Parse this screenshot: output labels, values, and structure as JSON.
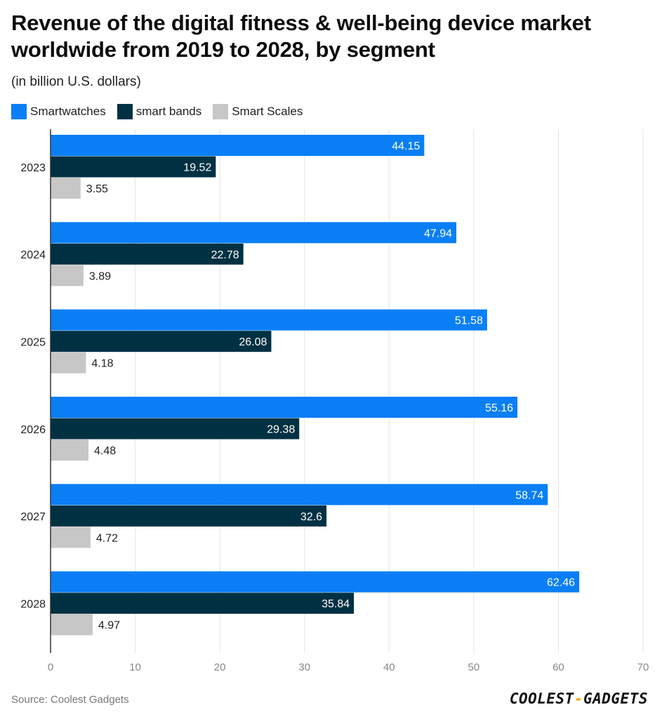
{
  "chart_data": {
    "type": "bar",
    "orientation": "horizontal",
    "title": "Revenue of the digital fitness & well-being device market worldwide from 2019 to 2028, by segment",
    "subtitle": "(in billion U.S. dollars)",
    "categories": [
      "2023",
      "2024",
      "2025",
      "2026",
      "2027",
      "2028"
    ],
    "series": [
      {
        "name": "Smartwatches",
        "color": "#0a7ff5",
        "values": [
          44.15,
          47.94,
          51.58,
          55.16,
          58.74,
          62.46
        ],
        "labels": [
          "44.15",
          "47.94",
          "51.58",
          "55.16",
          "58.74",
          "62.46"
        ]
      },
      {
        "name": "smart bands",
        "color": "#003143",
        "values": [
          19.52,
          22.78,
          26.08,
          29.38,
          32.6,
          35.84
        ],
        "labels": [
          "19.52",
          "22.78",
          "26.08",
          "29.38",
          "32.6",
          "35.84"
        ]
      },
      {
        "name": "Smart Scales",
        "color": "#c7c7c7",
        "values": [
          3.55,
          3.89,
          4.18,
          4.48,
          4.72,
          4.97
        ],
        "labels": [
          "3.55",
          "3.89",
          "4.18",
          "4.48",
          "4.72",
          "4.97"
        ]
      }
    ],
    "xlim": [
      0,
      70
    ],
    "xticks": [
      "0",
      "10",
      "20",
      "30",
      "40",
      "50",
      "60",
      "70"
    ],
    "xlabel": "",
    "ylabel": "",
    "grid": true,
    "legend": "top-left"
  },
  "footer": {
    "source": "Source: Coolest Gadgets",
    "logo_left": "COOLEST",
    "logo_dash": "-",
    "logo_right": "GADGETS"
  }
}
